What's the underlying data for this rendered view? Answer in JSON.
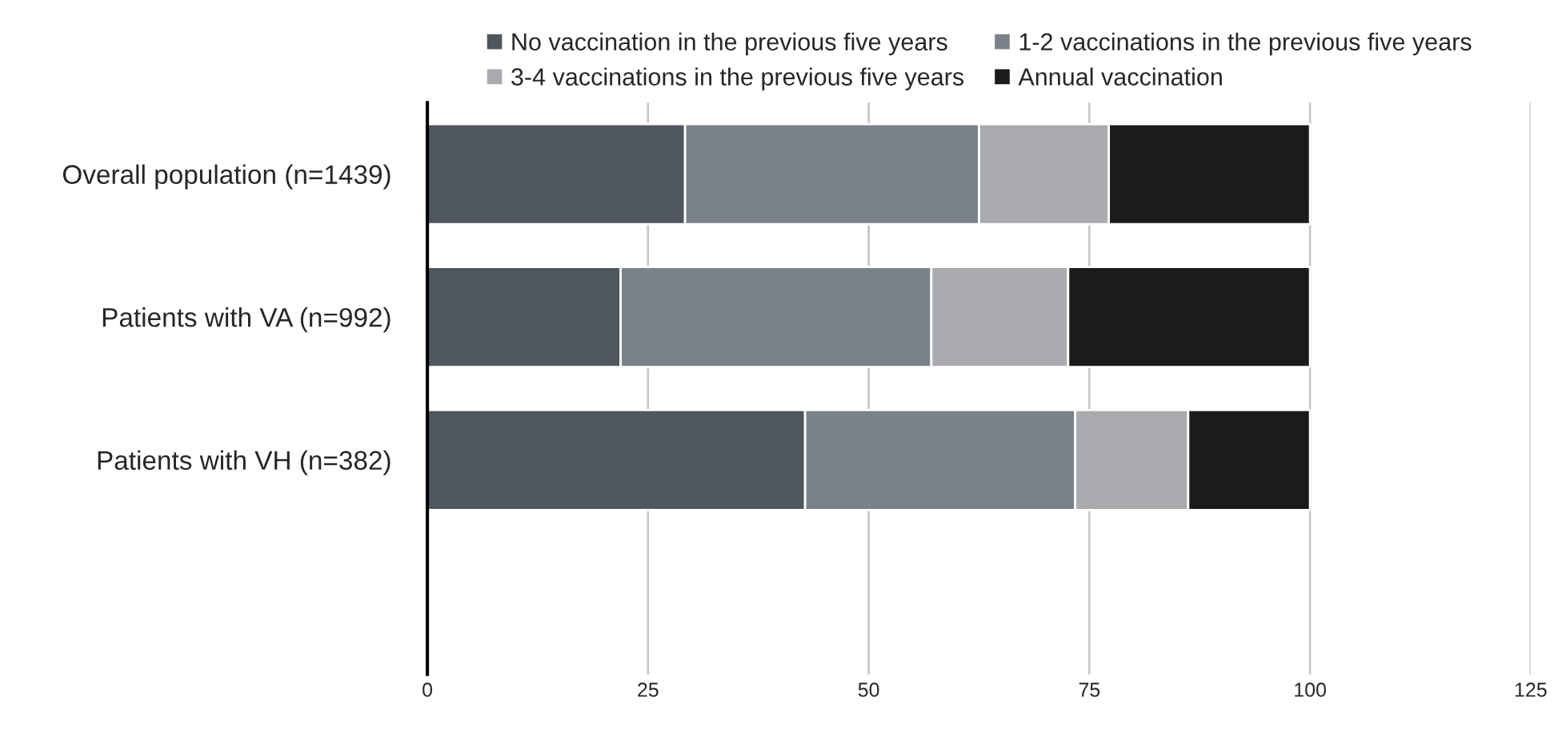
{
  "chart_data": {
    "type": "bar",
    "orientation": "horizontal",
    "stacked": true,
    "categories": [
      "Overall population (n=1439)",
      "Patients with VA (n=992)",
      "Patients with VH (n=382)",
      null
    ],
    "series": [
      {
        "name": "No vaccination in the previous five years",
        "color": "#50565e",
        "values": [
          29.2,
          21.9,
          42.8,
          null
        ]
      },
      {
        "name": "1-2 vaccinations in the previous five years",
        "color": "#7b8189",
        "values": [
          33.3,
          35.2,
          30.6,
          null
        ]
      },
      {
        "name": "3-4 vaccinations in the previous five years",
        "color": "#a9abae",
        "values": [
          14.7,
          15.5,
          12.8,
          null
        ]
      },
      {
        "name": "Annual vaccination",
        "color": "#1b1b1b",
        "values": [
          22.8,
          27.4,
          13.8,
          null
        ]
      }
    ],
    "xlim": [
      0,
      125
    ],
    "xticks": [
      0,
      25,
      50,
      75,
      100,
      125
    ],
    "grid": "x",
    "legend": "top"
  }
}
